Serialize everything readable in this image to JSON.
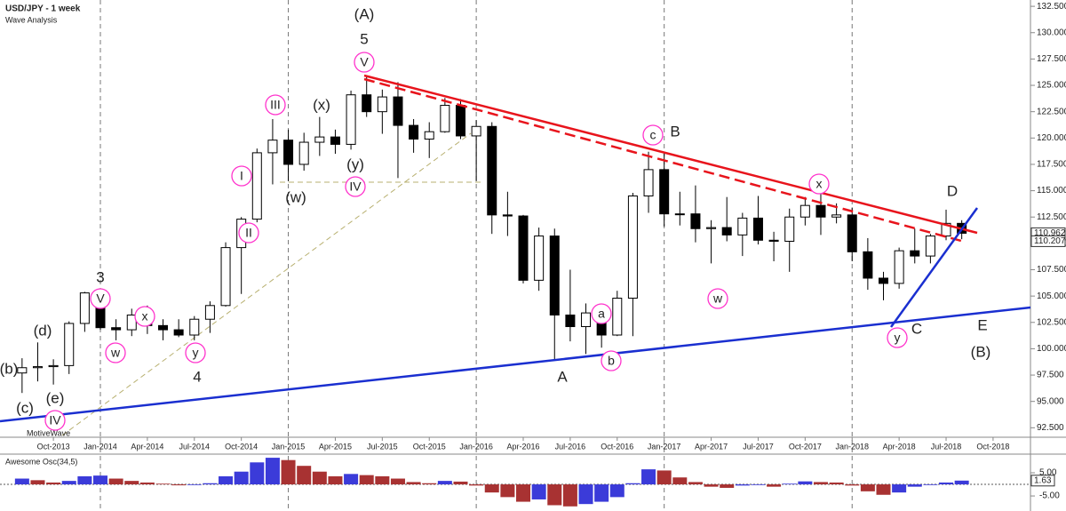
{
  "chart_data": [
    {
      "type": "candlestick",
      "title": "USD/JPY - 1 week",
      "subtitle": "Wave Analysis",
      "watermark": "MotiveWave",
      "categories": [
        null,
        null,
        "Oct-2013",
        null,
        null,
        "Jan-2014",
        null,
        null,
        "Apr-2014",
        null,
        null,
        "Jul-2014",
        null,
        null,
        "Oct-2014",
        null,
        null,
        "Jan-2015",
        null,
        null,
        "Apr-2015",
        null,
        null,
        "Jul-2015",
        null,
        null,
        "Oct-2015",
        null,
        null,
        "Jan-2016",
        null,
        null,
        "Apr-2016",
        null,
        null,
        "Jul-2016",
        null,
        null,
        "Oct-2016",
        null,
        null,
        "Jan-2017",
        null,
        null,
        "Apr-2017",
        null,
        null,
        "Jul-2017",
        null,
        null,
        "Oct-2017",
        null,
        null,
        "Jan-2018",
        null,
        null,
        "Apr-2018",
        null,
        null,
        "Jul-2018",
        null,
        null,
        "Oct-2018"
      ],
      "open": [
        97.7,
        98.2,
        98.3,
        98.4,
        102.4,
        105.3,
        102.0,
        101.8,
        103.2,
        102.2,
        101.8,
        101.3,
        102.8,
        104.1,
        109.6,
        112.3,
        118.6,
        119.8,
        117.5,
        119.6,
        120.1,
        119.4,
        124.1,
        122.5,
        123.9,
        121.2,
        119.9,
        120.6,
        123.1,
        120.2,
        121.1,
        112.7,
        112.6,
        106.5,
        110.7,
        103.2,
        102.1,
        103.4,
        101.3,
        104.8,
        114.5,
        117.0,
        112.8,
        112.8,
        111.4,
        111.5,
        110.8,
        112.4,
        110.3,
        110.2,
        112.5,
        113.6,
        112.5,
        112.7,
        109.2,
        106.7,
        106.2,
        109.3,
        108.8,
        110.7,
        111.9,
        null,
        null
      ],
      "high": [
        99.1,
        100.6,
        99.0,
        102.6,
        105.4,
        105.4,
        102.8,
        103.8,
        104.1,
        102.8,
        102.8,
        103.1,
        104.5,
        110.1,
        112.5,
        119.0,
        121.8,
        120.8,
        120.5,
        122.0,
        120.8,
        124.5,
        125.9,
        124.6,
        125.3,
        121.8,
        121.5,
        123.8,
        123.7,
        121.7,
        121.5,
        114.9,
        112.7,
        111.5,
        111.4,
        107.5,
        104.3,
        104.0,
        105.5,
        114.8,
        118.7,
        118.6,
        114.9,
        115.5,
        112.2,
        114.4,
        112.9,
        114.5,
        111.1,
        113.3,
        114.4,
        114.7,
        113.8,
        113.4,
        110.5,
        107.3,
        109.6,
        111.4,
        110.9,
        113.2,
        112.2,
        null,
        null
      ],
      "low": [
        95.8,
        96.9,
        96.6,
        97.6,
        101.6,
        101.8,
        100.8,
        101.2,
        101.4,
        100.8,
        101.1,
        100.8,
        101.5,
        104.0,
        105.2,
        112.0,
        115.6,
        115.9,
        116.9,
        118.3,
        118.5,
        118.9,
        122.0,
        120.4,
        116.2,
        118.6,
        118.1,
        120.5,
        119.9,
        115.9,
        110.9,
        110.7,
        106.2,
        105.5,
        99.0,
        100.7,
        99.5,
        100.1,
        101.2,
        101.2,
        112.9,
        111.6,
        111.7,
        110.1,
        108.1,
        110.2,
        108.8,
        109.9,
        108.3,
        107.3,
        111.7,
        110.8,
        111.9,
        108.3,
        105.6,
        104.6,
        105.7,
        108.1,
        108.1,
        110.3,
        110.4,
        null,
        null
      ],
      "close": [
        98.2,
        98.3,
        98.4,
        102.4,
        105.3,
        102.0,
        101.8,
        103.2,
        102.2,
        101.8,
        101.3,
        102.8,
        104.1,
        109.6,
        112.3,
        118.6,
        119.8,
        117.5,
        119.6,
        120.1,
        119.4,
        124.1,
        122.5,
        123.9,
        121.2,
        119.9,
        120.6,
        123.1,
        120.2,
        121.1,
        112.7,
        112.6,
        106.5,
        110.7,
        103.2,
        102.1,
        103.4,
        101.3,
        104.8,
        114.5,
        117.0,
        112.8,
        112.8,
        111.4,
        111.5,
        110.8,
        112.4,
        110.3,
        110.2,
        112.5,
        113.6,
        112.5,
        112.7,
        109.2,
        106.7,
        106.2,
        109.3,
        108.8,
        110.7,
        111.9,
        110.962,
        null,
        null
      ],
      "up_color": "#ffffff",
      "down_color": "#000000",
      "ylim": [
        91.6,
        133.1
      ],
      "yticks": [
        {
          "value": 92.5,
          "label": "92.500"
        },
        {
          "value": 95,
          "label": "95.000"
        },
        {
          "value": 97.5,
          "label": "97.500"
        },
        {
          "value": 100,
          "label": "100.000"
        },
        {
          "value": 102.5,
          "label": "102.500"
        },
        {
          "value": 105,
          "label": "105.000"
        },
        {
          "value": 107.5,
          "label": "107.500"
        },
        {
          "value": 110,
          "label": "110.000"
        },
        {
          "value": 112.5,
          "label": "112.500"
        },
        {
          "value": 115,
          "label": "115.000"
        },
        {
          "value": 117.5,
          "label": "117.500"
        },
        {
          "value": 120,
          "label": "120.000"
        },
        {
          "value": 122.5,
          "label": "122.500"
        },
        {
          "value": 125,
          "label": "125.000"
        },
        {
          "value": 127.5,
          "label": "127.500"
        },
        {
          "value": 130,
          "label": "130.000"
        },
        {
          "value": 132.5,
          "label": "132.500"
        }
      ],
      "price_labels": [
        {
          "value": 110.962,
          "label": "110.962"
        },
        {
          "value": 110.207,
          "label": "110.207"
        }
      ],
      "annotations": [
        {
          "text": "(A)",
          "color": "#e8141c"
        },
        {
          "text": "5",
          "color": "#b391e6"
        },
        {
          "text": "V",
          "color": "#ff33cc"
        },
        {
          "text": "III",
          "color": "#ff33cc"
        },
        {
          "text": "(x)",
          "color": "#6b1a6b"
        },
        {
          "text": "(y)",
          "color": "#6b1a6b"
        },
        {
          "text": "IV",
          "color": "#ff33cc"
        },
        {
          "text": "(w)",
          "color": "#6b1a6b"
        },
        {
          "text": "I",
          "color": "#ff33cc"
        },
        {
          "text": "II",
          "color": "#ff33cc"
        },
        {
          "text": "3",
          "color": "#b391e6"
        },
        {
          "text": "V",
          "color": "#ff33cc"
        },
        {
          "text": "x",
          "color": "#ff33cc"
        },
        {
          "text": "w",
          "color": "#ff33cc"
        },
        {
          "text": "y",
          "color": "#ff33cc"
        },
        {
          "text": "4",
          "color": "#b391e6"
        },
        {
          "text": "(b)",
          "color": "#6b1a6b"
        },
        {
          "text": "(d)",
          "color": "#6b1a6b"
        },
        {
          "text": "(c)",
          "color": "#6b1a6b"
        },
        {
          "text": "(e)",
          "color": "#6b1a6b"
        },
        {
          "text": "IV",
          "color": "#ff33cc"
        },
        {
          "text": "c",
          "color": "#ff33cc"
        },
        {
          "text": "B",
          "color": "#b391e6"
        },
        {
          "text": "a",
          "color": "#ff33cc"
        },
        {
          "text": "b",
          "color": "#ff33cc"
        },
        {
          "text": "A",
          "color": "#b391e6"
        },
        {
          "text": "w",
          "color": "#ff33cc"
        },
        {
          "text": "x",
          "color": "#ff33cc"
        },
        {
          "text": "D",
          "color": "#b391e6"
        },
        {
          "text": "y",
          "color": "#ff33cc"
        },
        {
          "text": "C",
          "color": "#b391e6"
        },
        {
          "text": "E",
          "color": "#b391e6"
        },
        {
          "text": "(B)",
          "color": "#e8141c"
        }
      ]
    },
    {
      "type": "bar",
      "title": "Awesome Osc(34,5)",
      "values": [
        2.5,
        1.8,
        0.8,
        1.5,
        3.5,
        3.8,
        2.5,
        1.5,
        0.8,
        0.3,
        -0.4,
        -0.3,
        0.5,
        3.5,
        5.5,
        9.5,
        11.5,
        10.5,
        8.0,
        5.5,
        3.5,
        4.5,
        4.0,
        3.5,
        2.5,
        1.0,
        0.5,
        1.5,
        1.2,
        -0.5,
        -3.5,
        -5.5,
        -7.5,
        -6.5,
        -9.0,
        -9.5,
        -8.5,
        -7.5,
        -5.5,
        0.5,
        6.5,
        6.0,
        3.0,
        1.0,
        -1.0,
        -1.5,
        -0.5,
        -0.3,
        -1.0,
        0.3,
        1.3,
        1.0,
        0.8,
        -0.5,
        -3.0,
        -4.5,
        -3.5,
        -1.0,
        -0.3,
        0.8,
        1.63,
        null,
        null
      ],
      "up_color": "#3b3bd9",
      "down_color": "#a83232",
      "ylim": [
        -11.5,
        12.3
      ],
      "yticks": [
        {
          "value": 5,
          "label": "5.00"
        },
        {
          "value": -5,
          "label": "-5.00"
        }
      ],
      "current_value": {
        "value": 1.63,
        "label": "1.63"
      }
    }
  ]
}
